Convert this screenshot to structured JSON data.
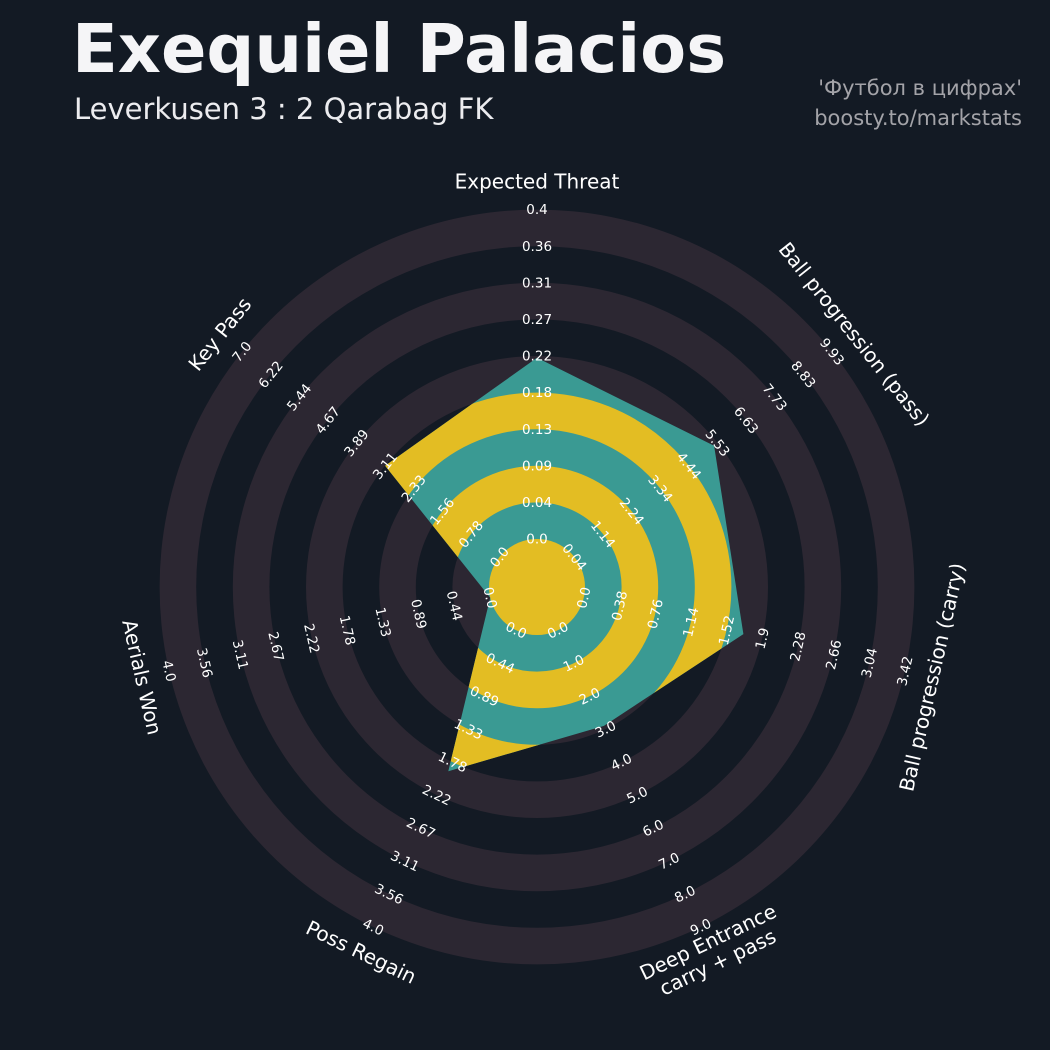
{
  "header": {
    "title": "Exequiel Palacios",
    "subtitle": "Leverkusen 3 : 2 Qarabag FK",
    "credit_line1": "'Футбол в цифрах'",
    "credit_line2": "boosty.to/markstats"
  },
  "chart_data": {
    "type": "radar",
    "title": "Exequiel Palacios — Leverkusen 3 : 2 Qarabag FK",
    "axes_start": "top, clockwise",
    "num_rings": 9,
    "style": {
      "background": "#131a24",
      "ring_color": "#2c2732",
      "radar_fill": "#3a9a93",
      "inner_ring_fill": "#e3bd23",
      "tick_color": "#ffffff",
      "param_color": "#ffffff"
    },
    "params": [
      {
        "label": "Expected Threat",
        "value": 0.22,
        "ticks": [
          "0.0",
          "0.04",
          "0.09",
          "0.13",
          "0.18",
          "0.22",
          "0.27",
          "0.31",
          "0.36",
          "0.4"
        ]
      },
      {
        "label": "Ball progression (pass)",
        "value": 5.4,
        "ticks": [
          "0.04",
          "1.14",
          "2.24",
          "3.34",
          "4.44",
          "5.53",
          "6.63",
          "7.73",
          "8.83",
          "9.93"
        ]
      },
      {
        "label": "Ball progression (carry)",
        "value": 1.7,
        "ticks": [
          "0.0",
          "0.38",
          "0.76",
          "1.14",
          "1.52",
          "1.9",
          "2.28",
          "2.66",
          "3.04",
          "3.42"
        ]
      },
      {
        "label": "Deep Entrance carry + pass",
        "lines": [
          "Deep Entrance",
          "carry + pass"
        ],
        "value": 2.9,
        "ticks": [
          "0.0",
          "1.0",
          "2.0",
          "3.0",
          "4.0",
          "5.0",
          "6.0",
          "7.0",
          "8.0",
          "9.0"
        ]
      },
      {
        "label": "Poss Regain",
        "value": 1.9,
        "ticks": [
          "0.0",
          "0.44",
          "0.89",
          "1.33",
          "1.78",
          "2.22",
          "2.67",
          "3.11",
          "3.56",
          "4.0"
        ]
      },
      {
        "label": "Aerials Won",
        "value": 0.0,
        "ticks": [
          "0.0",
          "0.44",
          "0.89",
          "1.33",
          "1.78",
          "2.22",
          "2.67",
          "3.11",
          "3.56",
          "4.0"
        ]
      },
      {
        "label": "Key Pass",
        "value": 3.11,
        "ticks": [
          "0.0",
          "0.78",
          "1.56",
          "2.33",
          "3.11",
          "3.89",
          "4.67",
          "5.44",
          "6.22",
          "7.0"
        ]
      }
    ]
  }
}
